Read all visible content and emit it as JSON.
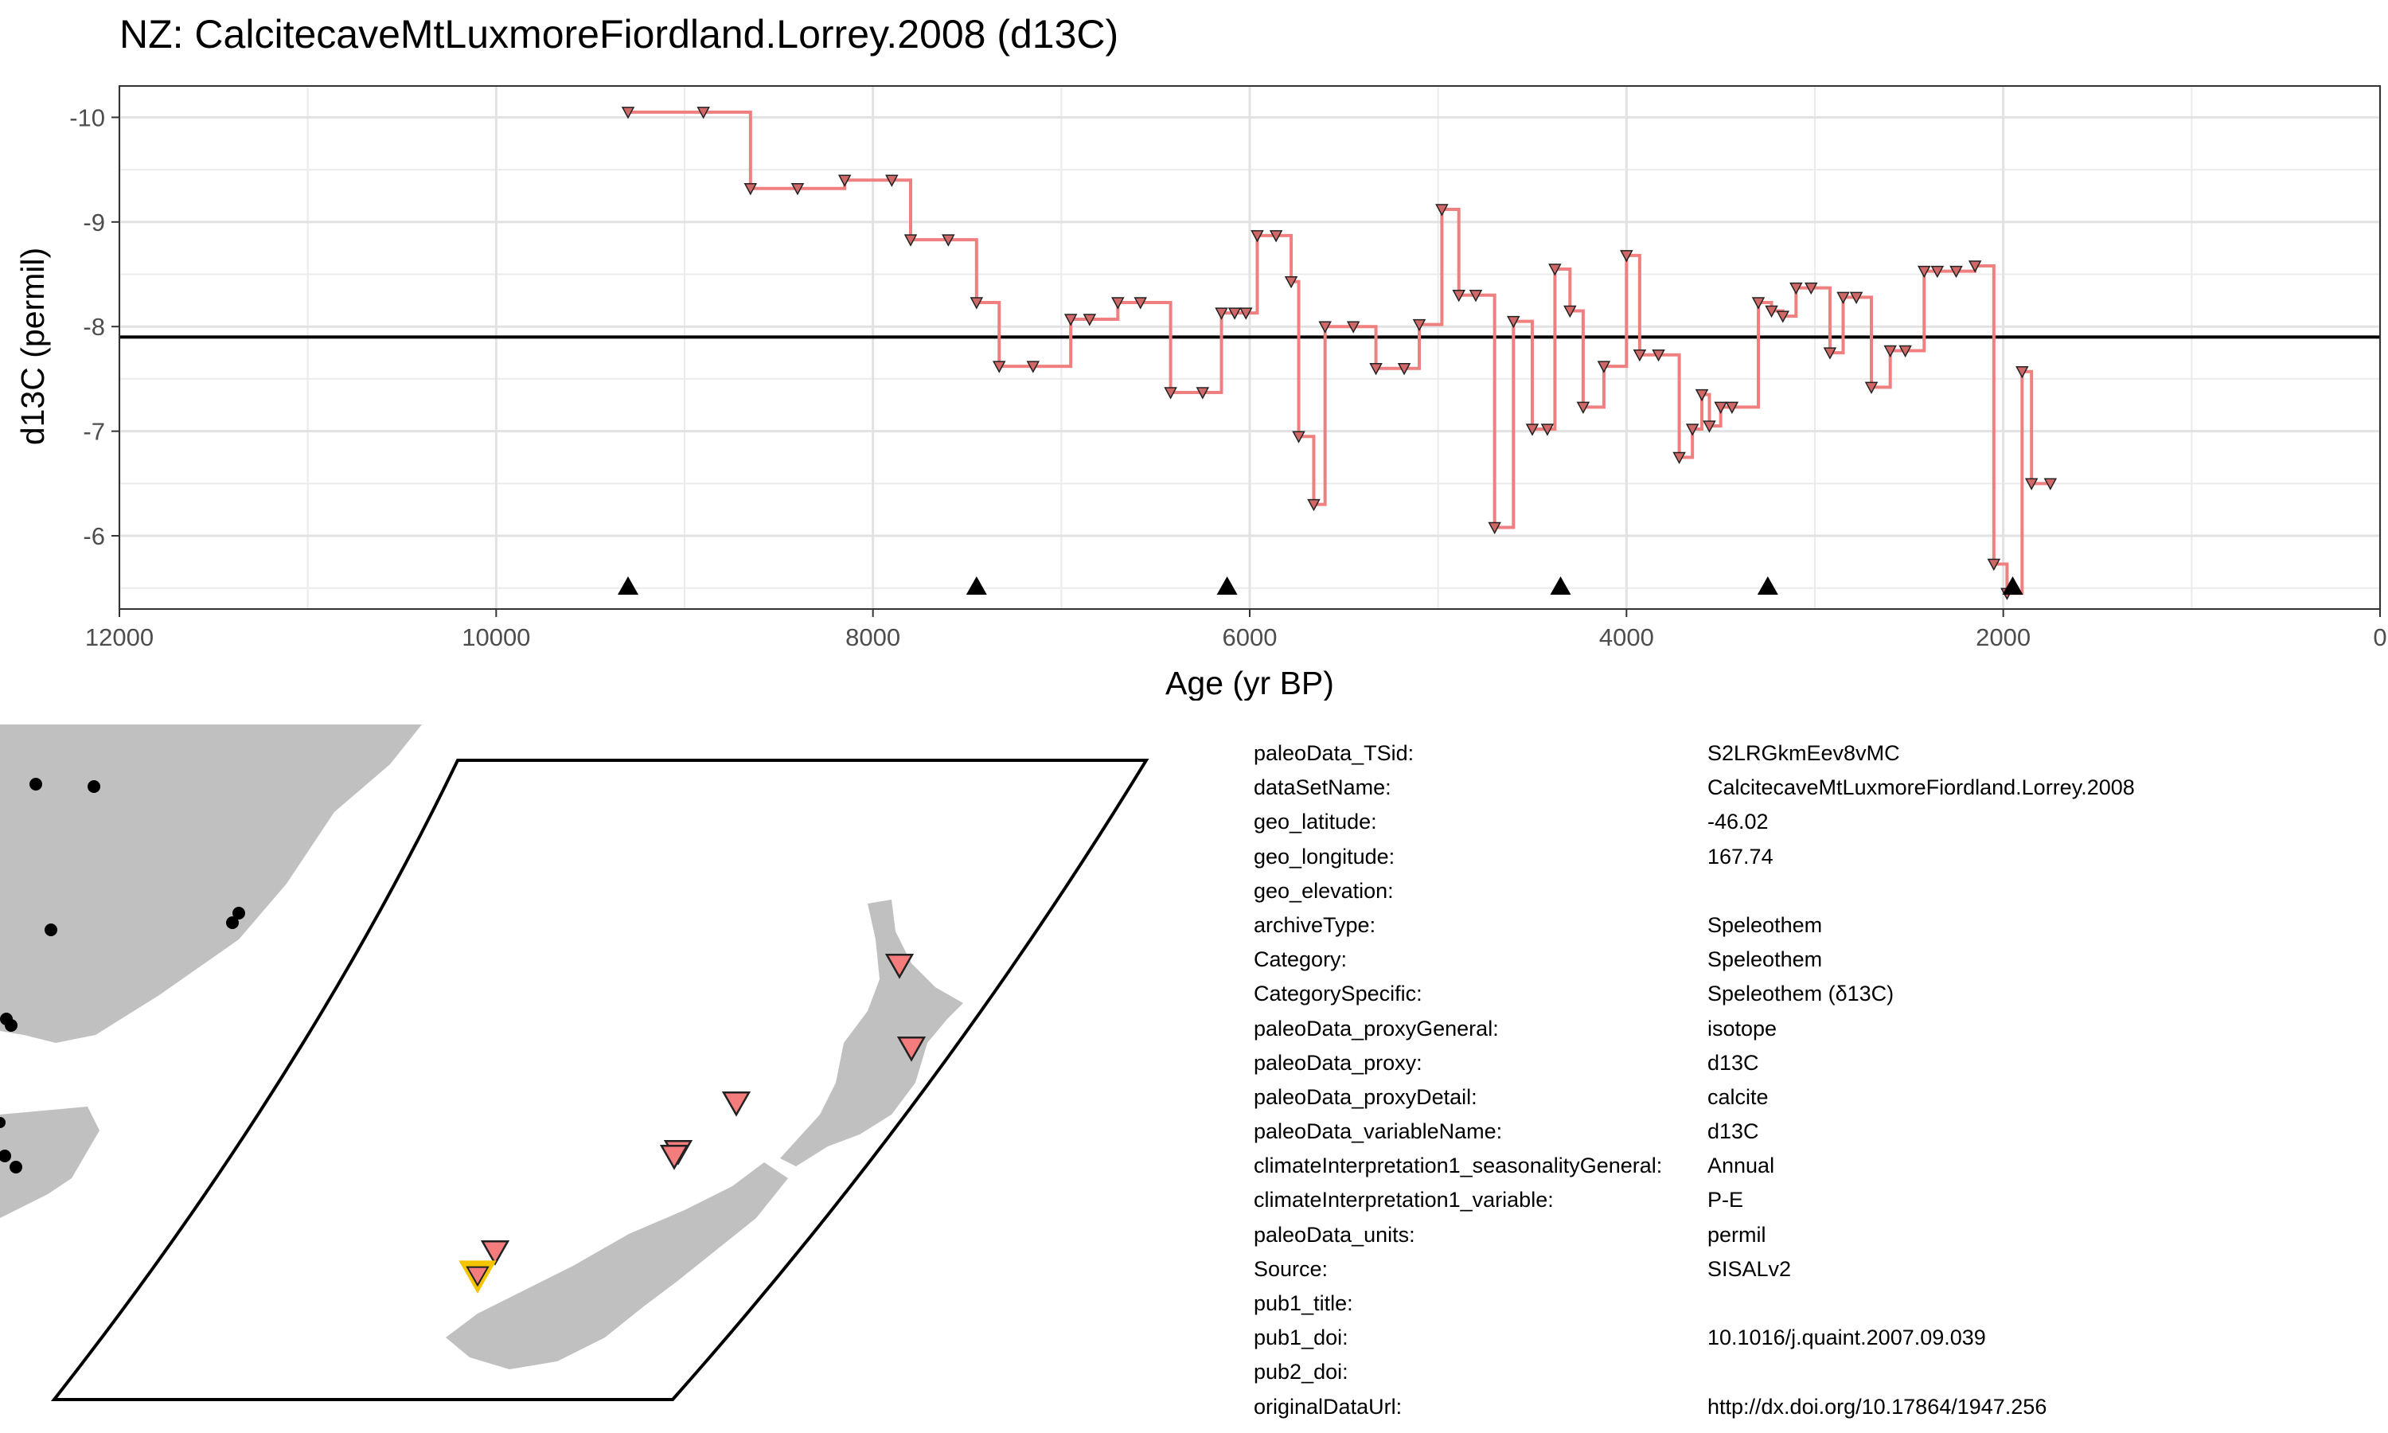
{
  "chart_data": {
    "type": "line",
    "title": "NZ: CalcitecaveMtLuxmoreFiordland.Lorrey.2008 (d13C)",
    "xlabel": "Age (yr BP)",
    "ylabel": "d13C (permil)",
    "xlim": [
      12000,
      0
    ],
    "ylim": [
      -10.3,
      -5.3
    ],
    "x_reversed": true,
    "y_reversed": true,
    "x_ticks": [
      12000,
      10000,
      8000,
      6000,
      4000,
      2000,
      0
    ],
    "y_ticks": [
      -10,
      -9,
      -8,
      -7,
      -6
    ],
    "grid": true,
    "mean_line": -7.9,
    "line_color": "#f08080",
    "marker": "down-triangle",
    "series": [
      {
        "x": [
          9300,
          8900,
          8650,
          8400,
          8150,
          7900,
          7800,
          7600,
          7450,
          7330,
          7150,
          6950,
          6850,
          6700,
          6580,
          6420,
          6250,
          6150,
          6080,
          6020,
          5960,
          5860,
          5780,
          5740,
          5660,
          5600,
          5450,
          5330,
          5180,
          5100,
          4980,
          4890,
          4800,
          4700,
          4600,
          4500,
          4420,
          4380,
          4300,
          4230,
          4120,
          4000,
          3930,
          3830,
          3720,
          3650,
          3600,
          3560,
          3500,
          3440,
          3300,
          3230,
          3170,
          3100,
          3020,
          2920,
          2850,
          2780,
          2700,
          2600,
          2520,
          2420,
          2350,
          2250,
          2150,
          2050,
          1980,
          1900,
          1850,
          1750
        ],
        "y": [
          -10.05,
          -10.05,
          -9.32,
          -9.32,
          -9.4,
          -9.4,
          -8.83,
          -8.83,
          -8.23,
          -7.62,
          -7.62,
          -8.07,
          -8.07,
          -8.23,
          -8.23,
          -7.37,
          -7.37,
          -8.13,
          -8.13,
          -8.13,
          -8.87,
          -8.87,
          -8.43,
          -6.95,
          -6.3,
          -8.0,
          -8.0,
          -7.6,
          -7.6,
          -8.02,
          -9.12,
          -8.3,
          -8.3,
          -6.08,
          -8.05,
          -7.02,
          -7.02,
          -8.55,
          -8.15,
          -7.23,
          -7.62,
          -8.68,
          -7.73,
          -7.73,
          -6.75,
          -7.02,
          -7.35,
          -7.05,
          -7.23,
          -7.23,
          -8.23,
          -8.15,
          -8.1,
          -8.37,
          -8.37,
          -7.75,
          -8.28,
          -8.28,
          -7.42,
          -7.77,
          -7.77,
          -8.53,
          -8.53,
          -8.53,
          -8.58,
          -5.73,
          -5.45,
          -7.57,
          -6.5,
          -6.5
        ]
      }
    ],
    "age_control_points": [
      9300,
      7450,
      6120,
      4350,
      3250,
      1950
    ]
  },
  "map": {
    "locator_color": "#f57c7c",
    "highlight_color": "#f5c400",
    "land_color": "#c0c0c0"
  },
  "metadata": [
    {
      "key": "paleoData_TSid:",
      "value": "S2LRGkmEev8vMC"
    },
    {
      "key": "dataSetName:",
      "value": "CalcitecaveMtLuxmoreFiordland.Lorrey.2008"
    },
    {
      "key": "geo_latitude:",
      "value": "-46.02"
    },
    {
      "key": "geo_longitude:",
      "value": "167.74"
    },
    {
      "key": "geo_elevation:",
      "value": ""
    },
    {
      "key": "archiveType:",
      "value": "Speleothem"
    },
    {
      "key": "Category:",
      "value": "Speleothem"
    },
    {
      "key": "CategorySpecific:",
      "value": "Speleothem (δ13C)"
    },
    {
      "key": "paleoData_proxyGeneral:",
      "value": "isotope"
    },
    {
      "key": "paleoData_proxy:",
      "value": "d13C"
    },
    {
      "key": "paleoData_proxyDetail:",
      "value": "calcite"
    },
    {
      "key": "paleoData_variableName:",
      "value": "d13C"
    },
    {
      "key": "climateInterpretation1_seasonalityGeneral:",
      "value": "Annual"
    },
    {
      "key": "climateInterpretation1_variable:",
      "value": "P-E"
    },
    {
      "key": "paleoData_units:",
      "value": "permil"
    },
    {
      "key": "Source:",
      "value": "SISALv2"
    },
    {
      "key": "pub1_title:",
      "value": ""
    },
    {
      "key": "pub1_doi:",
      "value": "10.1016/j.quaint.2007.09.039"
    },
    {
      "key": "pub2_doi:",
      "value": ""
    },
    {
      "key": "originalDataUrl:",
      "value": "http://dx.doi.org/10.17864/1947.256"
    }
  ]
}
